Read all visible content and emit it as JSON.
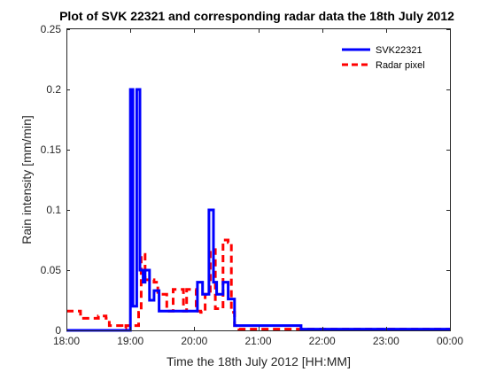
{
  "chart_data": {
    "type": "line",
    "title": "Plot of SVK 22321 and corresponding radar data the 18th July 2012",
    "xlabel": "Time the 18th July 2012 [HH:MM]",
    "ylabel": "Rain intensity [mm/min]",
    "x_ticks": [
      "18:00",
      "19:00",
      "20:00",
      "21:00",
      "22:00",
      "23:00",
      "00:00"
    ],
    "x_tick_hours": [
      18,
      19,
      20,
      21,
      22,
      23,
      24
    ],
    "xlim_hours": [
      18,
      24
    ],
    "y_ticks": [
      "0",
      "0.05",
      "0.1",
      "0.15",
      "0.2",
      "0.25"
    ],
    "y_tick_values": [
      0,
      0.05,
      0.1,
      0.15,
      0.2,
      0.25
    ],
    "ylim": [
      0,
      0.25
    ],
    "grid": false,
    "legend_position": "top-right",
    "series": [
      {
        "name": "SVK22321",
        "color": "#0000ff",
        "style": "solid",
        "step": true,
        "x_hours": [
          18.0,
          18.97,
          19.0,
          19.04,
          19.07,
          19.1,
          19.15,
          19.2,
          19.23,
          19.3,
          19.37,
          19.45,
          19.57,
          20.05,
          20.13,
          20.23,
          20.3,
          20.35,
          20.45,
          20.53,
          20.63,
          21.67,
          24.0
        ],
        "values": [
          0.0,
          0.0,
          0.2,
          0.02,
          0.02,
          0.2,
          0.05,
          0.04,
          0.05,
          0.025,
          0.033,
          0.016,
          0.016,
          0.04,
          0.03,
          0.1,
          0.04,
          0.03,
          0.04,
          0.026,
          0.004,
          0.001,
          0.001
        ]
      },
      {
        "name": "Radar pixel",
        "color": "#ff0000",
        "style": "dashed",
        "step": true,
        "x_hours": [
          18.0,
          18.17,
          18.22,
          18.5,
          18.62,
          18.67,
          18.87,
          18.93,
          19.13,
          19.17,
          19.23,
          19.37,
          19.43,
          19.57,
          19.67,
          19.83,
          19.88,
          20.03,
          20.1,
          20.17,
          20.25,
          20.33,
          20.45,
          20.53,
          20.58,
          20.63,
          20.7,
          21.0,
          24.0
        ],
        "values": [
          0.016,
          0.016,
          0.01,
          0.012,
          0.01,
          0.004,
          0.002,
          0.004,
          0.015,
          0.063,
          0.042,
          0.04,
          0.03,
          0.016,
          0.034,
          0.016,
          0.034,
          0.016,
          0.015,
          0.03,
          0.067,
          0.018,
          0.075,
          0.073,
          0.015,
          0.004,
          0.001,
          0.001,
          0.001
        ]
      }
    ]
  }
}
